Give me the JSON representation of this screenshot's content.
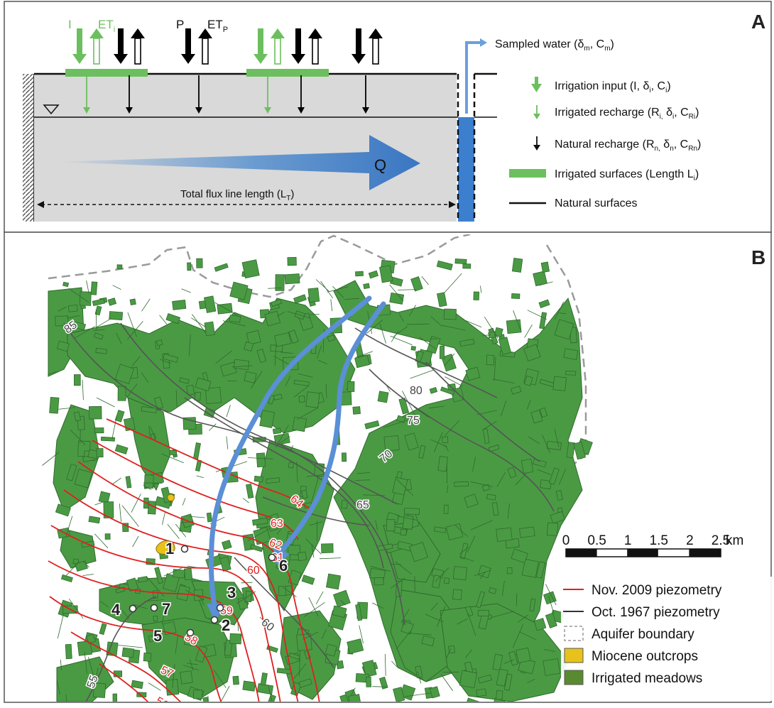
{
  "panel_a": {
    "letter": "A",
    "labels": {
      "irrigation": "I",
      "et_irrigation": "ET",
      "et_irrigation_sub": "i",
      "precipitation": "P",
      "et_precipitation": "ET",
      "et_precipitation_sub": "P",
      "flow": "Q",
      "flux_line": "Total flux line length (L",
      "flux_line_sub": "T",
      "flux_line_end": ")",
      "sampled_water": "Sampled water (δ",
      "sampled_water_sub1": "m",
      "sampled_water_mid": ", C",
      "sampled_water_sub2": "m",
      "sampled_water_end": ")"
    },
    "legend": [
      {
        "key": "irrigation_input",
        "text": "Irrigation input (I, δ",
        "sub1": "i",
        "mid": ", C",
        "sub2": "i",
        "end": ")"
      },
      {
        "key": "irrigated_recharge",
        "text": "Irrigated recharge (R",
        "sub1": "i,",
        "mid": " δ",
        "sub2": "i",
        "mid2": ", C",
        "sub3": "Ri",
        "end": ")"
      },
      {
        "key": "natural_recharge",
        "text": "Natural recharge (R",
        "sub1": "n,",
        "mid": " δ",
        "sub2": "n",
        "mid2": ", C",
        "sub3": "Rn",
        "end": ")"
      },
      {
        "key": "irrigated_surfaces",
        "text": "Irrigated surfaces (Length L",
        "sub1": "i",
        "end": ")"
      },
      {
        "key": "natural_surfaces",
        "text": "Natural surfaces"
      }
    ],
    "colors": {
      "irrigation": "#6cbf5e",
      "natural": "#000000",
      "aquifer": "#d9d9d9",
      "flow": "#4a86c8"
    }
  },
  "panel_b": {
    "letter": "B",
    "scale": {
      "ticks": [
        "0",
        "0.5",
        "1",
        "1.5",
        "2",
        "2.5"
      ],
      "unit": "km"
    },
    "legend": [
      {
        "key": "nov2009",
        "label": "Nov. 2009 piezometry",
        "color": "#e02020"
      },
      {
        "key": "oct1967",
        "label": "Oct. 1967 piezometry",
        "color": "#333333"
      },
      {
        "key": "boundary",
        "label": "Aquifer boundary",
        "color": "#999999"
      },
      {
        "key": "miocene",
        "label": "Miocene outcrops",
        "color": "#e8c21a"
      },
      {
        "key": "meadows",
        "label": "Irrigated meadows",
        "color": "#5a8a30"
      }
    ],
    "wells": [
      "1",
      "2",
      "3",
      "4",
      "5",
      "6",
      "7"
    ],
    "contours_1967": [
      "85",
      "80",
      "75",
      "70",
      "65",
      "60",
      "55"
    ],
    "contours_2009": [
      "64",
      "63",
      "62",
      "61",
      "60",
      "59",
      "58",
      "57",
      "56"
    ],
    "colors": {
      "meadow": "#4a9a44",
      "meadow_edge": "#2f6a2c",
      "flowpath": "#5b8fd6"
    }
  }
}
